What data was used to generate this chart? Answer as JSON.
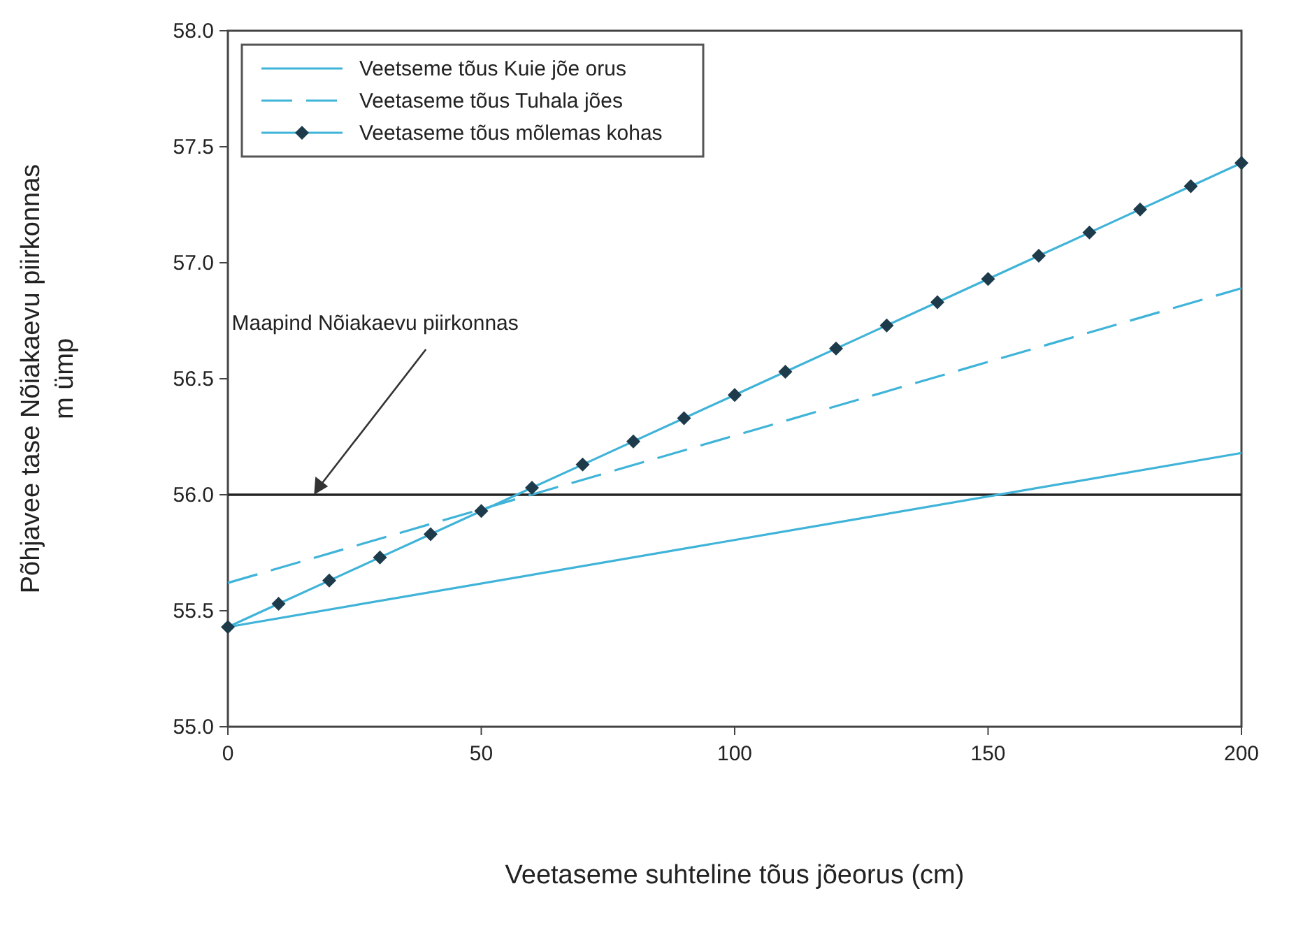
{
  "chart_data": {
    "type": "line",
    "xlabel": "Veetaseme suhteline tõus jõeorus (cm)",
    "ylabel": "Põhjavee tase Nõiakaevu piirkonnas\nm ümp",
    "xlim": [
      0,
      200
    ],
    "xticks": [
      0,
      50,
      100,
      150,
      200
    ],
    "ylim": [
      55,
      58
    ],
    "yticks": [
      {
        "value": 55,
        "label": "55.0"
      },
      {
        "value": 55.5,
        "label": "55.5"
      },
      {
        "value": 56,
        "label": "56.0"
      },
      {
        "value": 56.5,
        "label": "56.5"
      },
      {
        "value": 57,
        "label": "57.0"
      },
      {
        "value": 57.5,
        "label": "57.5"
      },
      {
        "value": 58,
        "label": "58.0"
      }
    ],
    "legend": "top left",
    "grid": false,
    "series": [
      {
        "name": "Veetseme tõus Kuie jõe orus",
        "color": "#3fb3d8",
        "line_style": "solid",
        "x": [
          0,
          200
        ],
        "values": [
          55.43,
          56.18
        ]
      },
      {
        "name": "Veetaseme tõus Tuhala jões",
        "color": "#3fb3d8",
        "line_style": "dashed",
        "x": [
          0,
          200
        ],
        "values": [
          55.62,
          56.89
        ]
      },
      {
        "name": "Veetaseme tõus mõlemas kohas",
        "color": "#3fb3d8",
        "line_style": "solid",
        "marker": "diamond",
        "x": [
          0,
          10,
          20,
          30,
          40,
          50,
          60,
          70,
          80,
          90,
          100,
          110,
          120,
          130,
          140,
          150,
          160,
          170,
          180,
          190,
          200
        ],
        "values": [
          55.43,
          55.53,
          55.63,
          55.73,
          55.83,
          55.93,
          56.03,
          56.13,
          56.23,
          56.33,
          56.43,
          56.53,
          56.63,
          56.73,
          56.83,
          56.93,
          57.03,
          57.13,
          57.23,
          57.33,
          57.43
        ]
      }
    ],
    "ref_lines": [
      {
        "axis": "y",
        "value": 56,
        "color": "#222222",
        "line_style": "solid"
      }
    ],
    "annotations": [
      {
        "text": "Maapind Nõiakaevu piirkonnas",
        "x": 17,
        "y": 56
      }
    ]
  }
}
